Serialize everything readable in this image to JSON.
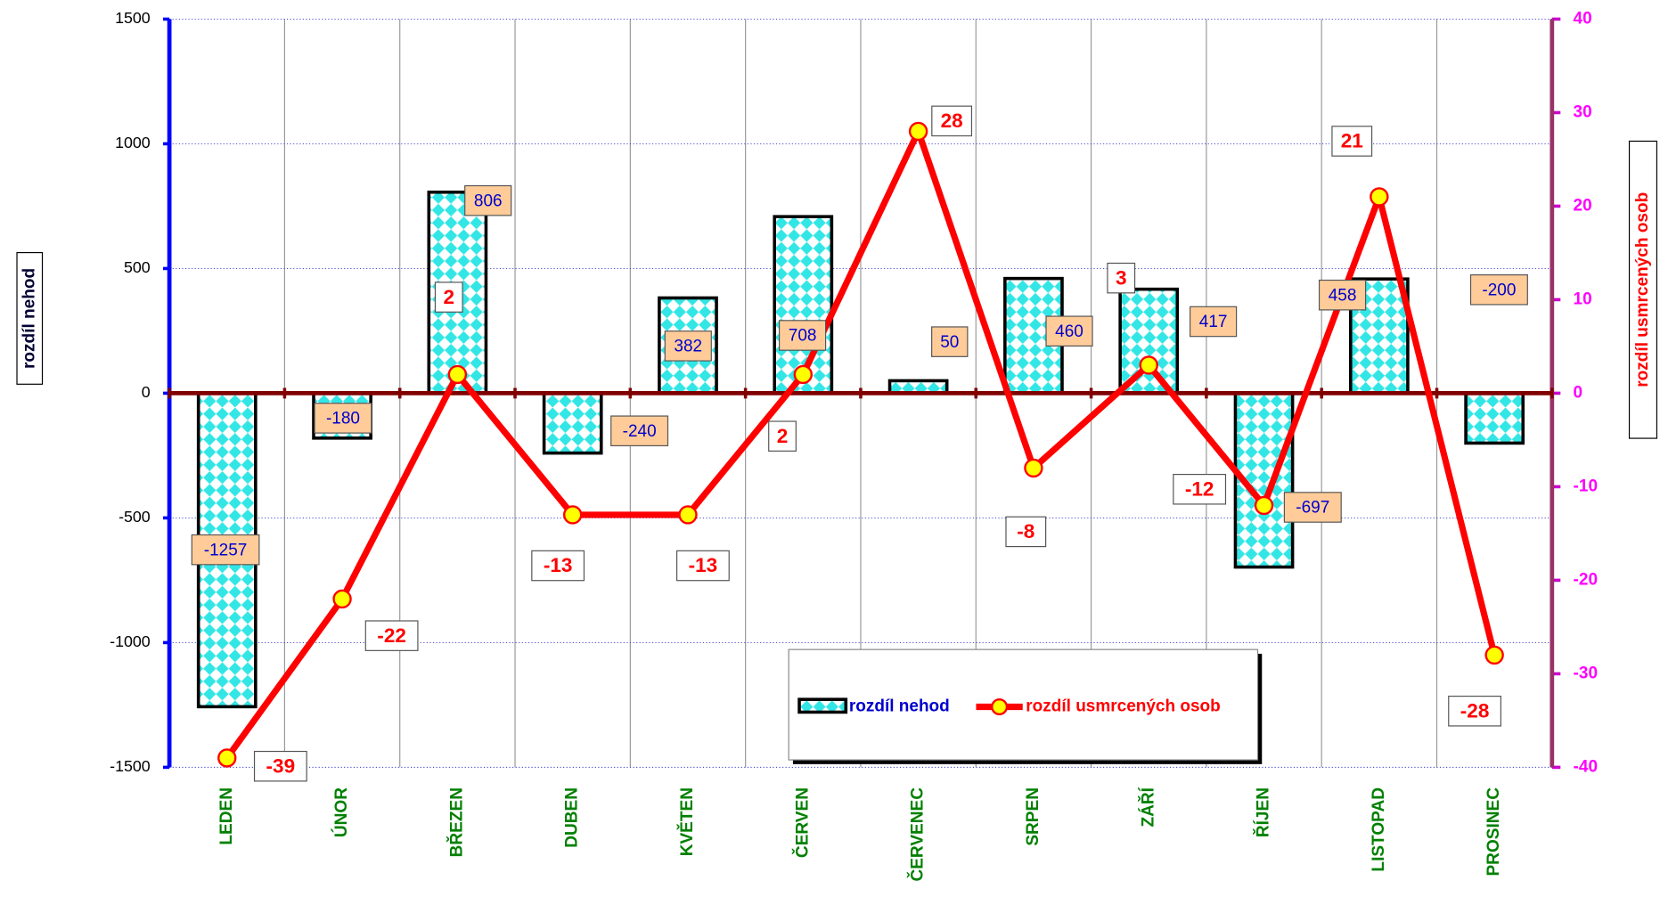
{
  "chart_data": {
    "type": "bar-line",
    "categories": [
      "LEDEN",
      "ÚNOR",
      "BŘEZEN",
      "DUBEN",
      "KVĚTEN",
      "ČERVEN",
      "ČERVENEC",
      "SRPEN",
      "ZÁŘÍ",
      "ŘÍJEN",
      "LISTOPAD",
      "PROSINEC"
    ],
    "series": [
      {
        "name": "rozdíl nehod",
        "type": "bar",
        "color": "#33e6e6",
        "values": [
          -1257,
          -180,
          806,
          -240,
          382,
          708,
          50,
          460,
          417,
          -697,
          458,
          -200
        ]
      },
      {
        "name": "rozdíl usmrcených osob",
        "type": "line",
        "axis": "y2",
        "color": "#ff0000",
        "values": [
          -39,
          -22,
          2,
          -13,
          -13,
          2,
          28,
          -8,
          3,
          -12,
          21,
          -28
        ]
      }
    ],
    "y_label": "rozdíl nehod",
    "y2_label": "rozdíl usmrcených osob",
    "ylim": [
      -1500,
      1500
    ],
    "yticks": [
      -1500,
      -1000,
      -500,
      0,
      500,
      1000,
      1500
    ],
    "y2lim": [
      -40,
      40
    ],
    "y2ticks": [
      -40,
      -30,
      -20,
      -10,
      0,
      10,
      20,
      30,
      40
    ],
    "grid": true
  }
}
